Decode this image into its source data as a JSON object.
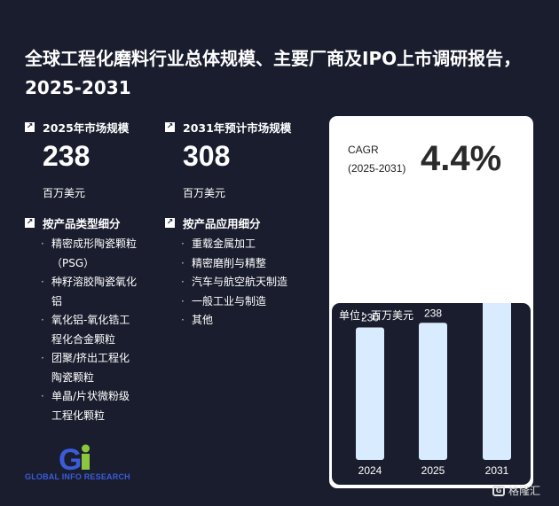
{
  "title": "全球工程化磨料行业总体规模、主要厂商及IPO上市调研报告，2025-2031",
  "market_2025": {
    "label": "2025年市场规模",
    "value": "238",
    "unit": "百万美元"
  },
  "market_2031": {
    "label": "2031年预计市场规模",
    "value": "308",
    "unit": "百万美元"
  },
  "by_type": {
    "label": "按产品类型细分",
    "items": [
      "精密成形陶瓷颗粒（PSG）",
      "种籽溶胶陶瓷氧化铝",
      "氧化铝-氧化锆工程化合金颗粒",
      "团聚/挤出工程化陶瓷颗粒",
      "单晶/片状微粉级工程化颗粒"
    ]
  },
  "by_application": {
    "label": "按产品应用细分",
    "items": [
      "重载金属加工",
      "精密磨削与精整",
      "汽车与航空航天制造",
      "一般工业与制造",
      "其他"
    ]
  },
  "cagr": {
    "label": "CAGR",
    "period": "(2025-2031)",
    "value": "4.4%"
  },
  "logo": {
    "text": "GLOBAL INFO RESEARCH",
    "mark": "Gi"
  },
  "badge": {
    "text": "格隆汇"
  },
  "colors": {
    "background": "#1a1d2e",
    "bar": "#d9ebff",
    "logo_blue": "#3b5bd9",
    "logo_green": "#8cc63f"
  },
  "chart_data": {
    "type": "bar",
    "unit_label": "单位：百万美元",
    "categories": [
      "2024",
      "2025",
      "2031"
    ],
    "values": [
      230,
      238,
      308
    ],
    "title": "",
    "xlabel": "",
    "ylabel": "",
    "grid": false
  }
}
